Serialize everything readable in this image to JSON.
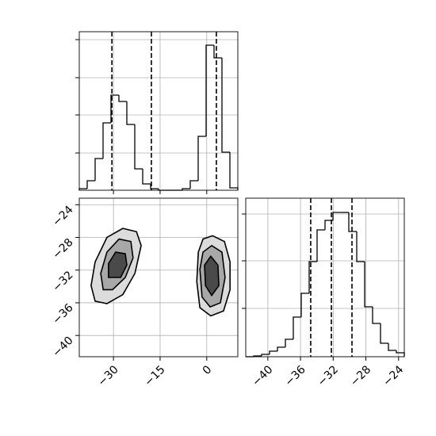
{
  "chart_data": [
    {
      "type": "histogram",
      "bins": [
        -41,
        -38.45,
        -35.9,
        -33.35,
        -30.8,
        -28.25,
        -25.7,
        -23.15,
        -20.6,
        -18.05,
        -15.5,
        -12.95,
        -10.4,
        -7.85,
        -5.3,
        -2.75,
        -0.2,
        2.35,
        4.9,
        7.45,
        10
      ],
      "values": [
        2,
        12,
        40,
        85,
        120,
        112,
        83,
        27,
        8,
        2,
        0,
        0,
        0,
        2,
        12,
        68,
        183,
        167,
        48,
        3
      ],
      "xlim": [
        -41,
        10
      ],
      "ylim": [
        0,
        200
      ],
      "xticks": [
        -30,
        -15,
        0
      ],
      "yticks": [
        47,
        95,
        142,
        190
      ],
      "quantiles": [
        -30.5,
        -17.8,
        3.1
      ],
      "grid": true
    },
    {
      "type": "contour",
      "xlim": [
        -41,
        10
      ],
      "ylim": [
        -42.6,
        -23.2
      ],
      "xticks": [
        {
          "value": -30,
          "label": "−30"
        },
        {
          "value": -15,
          "label": "−15"
        },
        {
          "value": 0,
          "label": "0"
        }
      ],
      "yticks": [
        {
          "value": -24,
          "label": "−24"
        },
        {
          "value": -28,
          "label": "−28"
        },
        {
          "value": -32,
          "label": "−32"
        },
        {
          "value": -36,
          "label": "−36"
        },
        {
          "value": -40,
          "label": "−40"
        }
      ],
      "contours": [
        {
          "x": [
            -35.9,
            -37.2,
            -35.9,
            -32.1,
            -27.0,
            -22.6,
            -21.1,
            -23.1,
            -27.0,
            -32.1
          ],
          "y": [
            -35.8,
            -33.9,
            -31.0,
            -28.0,
            -26.9,
            -27.3,
            -29.0,
            -32.4,
            -35.0,
            -36.1
          ]
        },
        {
          "x": [
            -33.3,
            -34.1,
            -32.1,
            -28.2,
            -24.4,
            -23.7,
            -26.2,
            -30.3
          ],
          "y": [
            -34.4,
            -32.4,
            -29.8,
            -28.2,
            -28.5,
            -30.5,
            -32.9,
            -34.4
          ]
        },
        {
          "x": [
            -31.6,
            -31.6,
            -29.3,
            -26.2,
            -25.7,
            -27.7
          ],
          "y": [
            -32.9,
            -31.2,
            -29.8,
            -30.0,
            -31.4,
            -32.9
          ]
        },
        {
          "x": [
            1.9,
            5.7,
            7.5,
            7.5,
            5.4,
            1.3,
            -2.2,
            -3.2,
            -2.7,
            -1.2
          ],
          "y": [
            -27.8,
            -28.5,
            -31.0,
            -34.4,
            -37.0,
            -37.6,
            -36.6,
            -33.4,
            -29.8,
            -28.2
          ]
        },
        {
          "x": [
            1.6,
            4.9,
            5.9,
            4.4,
            1.1,
            -1.5,
            -2.2,
            -1.2
          ],
          "y": [
            -29.0,
            -29.8,
            -32.9,
            -36.0,
            -36.5,
            -35.3,
            -31.9,
            -29.8
          ]
        },
        {
          "x": [
            1.3,
            3.6,
            3.9,
            1.6,
            -0.4,
            -0.7
          ],
          "y": [
            -30.3,
            -31.4,
            -33.9,
            -35.1,
            -33.9,
            -31.4
          ]
        }
      ],
      "grid": true
    },
    {
      "type": "histogram",
      "bins": [
        -42.7,
        -41.73,
        -40.76,
        -39.79,
        -38.82,
        -37.85,
        -36.88,
        -35.91,
        -34.94,
        -33.97,
        -33.0,
        -32.03,
        -31.06,
        -30.09,
        -29.12,
        -28.15,
        -27.18,
        -26.21,
        -25.24,
        -24.27,
        -23.3
      ],
      "values": [
        0,
        1,
        3,
        7,
        12,
        22,
        50,
        80,
        120,
        160,
        172,
        182,
        182,
        158,
        120,
        63,
        42,
        17,
        8,
        5
      ],
      "xlim": [
        -42.7,
        -23.3
      ],
      "ylim": [
        0,
        200
      ],
      "xticks": [
        {
          "value": -40,
          "label": "−40"
        },
        {
          "value": -36,
          "label": "−36"
        },
        {
          "value": -32,
          "label": "−32"
        },
        {
          "value": -28,
          "label": "−28"
        },
        {
          "value": -24,
          "label": "−24"
        }
      ],
      "yticks": [
        61,
        121,
        180
      ],
      "quantiles": [
        -34.75,
        -32.22,
        -29.7
      ],
      "grid": true
    }
  ]
}
